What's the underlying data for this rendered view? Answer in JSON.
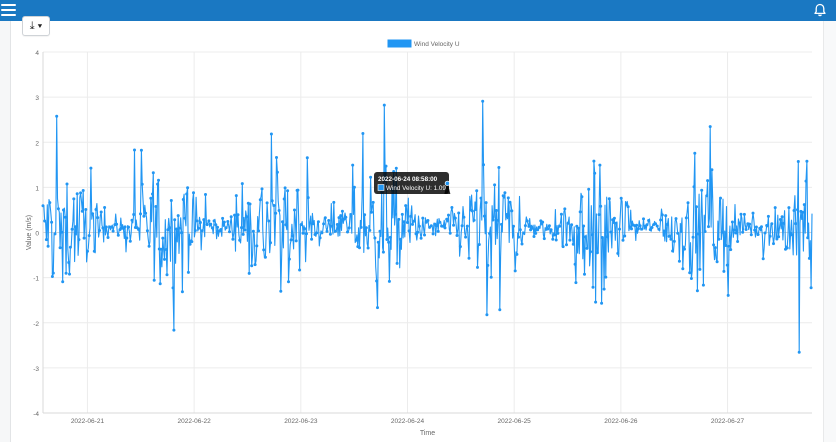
{
  "topbar": {
    "menu_icon": "hamburger-menu-icon",
    "bell_icon": "bell-icon",
    "color": "#1a78c2"
  },
  "toolbar": {
    "download_label": "⤓ ▾"
  },
  "chart_data": {
    "type": "line",
    "series": [
      {
        "name": "Wind Velocity U",
        "color": "#2196f3"
      }
    ],
    "legend": {
      "label": "Wind Velocity U",
      "position": "top"
    },
    "xlabel": "Time",
    "ylabel": "Value (m/s)",
    "ylim": [
      -4,
      4
    ],
    "yticks": [
      "4",
      "3",
      "2",
      "1",
      "0",
      "-1",
      "-2",
      "-3",
      "-4"
    ],
    "xlim": [
      "2022-06-20 14:00",
      "2022-06-27 19:00"
    ],
    "xticks": [
      "2022-06-21",
      "2022-06-22",
      "2022-06-23",
      "2022-06-24",
      "2022-06-25",
      "2022-06-26",
      "2022-06-27"
    ],
    "grid": true,
    "tooltip": {
      "title": "2022-06-24 08:58:00",
      "label": "Wind Velocity U: 1.09",
      "x": "2022-06-24 08:58:00",
      "y": 1.09
    }
  }
}
